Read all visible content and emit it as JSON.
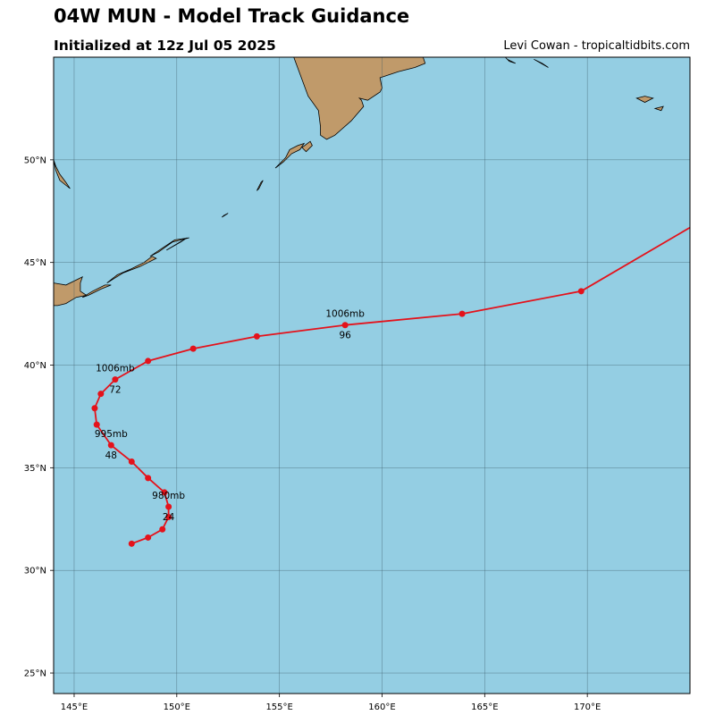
{
  "header": {
    "title": "04W MUN - Model Track Guidance",
    "subtitle": "Initialized at 12z Jul 05 2025",
    "credit": "Levi Cowan - tropicaltidbits.com"
  },
  "colors": {
    "ocean": "#94cee3",
    "land": "#c09a6a",
    "track": "#e4121b",
    "grid": "#3a5a66"
  },
  "chart_data": {
    "type": "map-track",
    "x_axis": {
      "range": [
        144,
        175
      ],
      "ticks": [
        145,
        150,
        155,
        160,
        165,
        170
      ],
      "tick_labels": [
        "145°E",
        "150°E",
        "155°E",
        "160°E",
        "165°E",
        "170°E"
      ]
    },
    "y_axis": {
      "range": [
        24,
        55
      ],
      "ticks": [
        25,
        30,
        35,
        40,
        45,
        50
      ],
      "tick_labels": [
        "25°N",
        "30°N",
        "35°N",
        "40°N",
        "45°N",
        "50°N"
      ]
    },
    "track": [
      {
        "lon": 147.8,
        "lat": 31.3
      },
      {
        "lon": 148.6,
        "lat": 31.6
      },
      {
        "lon": 149.3,
        "lat": 32.0
      },
      {
        "lon": 149.6,
        "lat": 32.6
      },
      {
        "lon": 149.6,
        "lat": 33.1
      },
      {
        "lon": 149.4,
        "lat": 33.8
      },
      {
        "lon": 148.6,
        "lat": 34.5
      },
      {
        "lon": 147.8,
        "lat": 35.3
      },
      {
        "lon": 146.8,
        "lat": 36.1
      },
      {
        "lon": 146.1,
        "lat": 37.1
      },
      {
        "lon": 146.0,
        "lat": 37.9
      },
      {
        "lon": 146.3,
        "lat": 38.6
      },
      {
        "lon": 147.0,
        "lat": 39.3
      },
      {
        "lon": 148.6,
        "lat": 40.2
      },
      {
        "lon": 150.8,
        "lat": 40.8
      },
      {
        "lon": 153.9,
        "lat": 41.4
      },
      {
        "lon": 158.2,
        "lat": 41.95
      },
      {
        "lon": 163.9,
        "lat": 42.5
      },
      {
        "lon": 169.7,
        "lat": 43.6
      },
      {
        "lon": 175.0,
        "lat": 46.7
      }
    ],
    "track_end_index": 18,
    "labels": [
      {
        "pressure": "980mb",
        "hour": "24",
        "lon": 149.6,
        "lat": 33.1
      },
      {
        "pressure": "995mb",
        "hour": "48",
        "lon": 146.8,
        "lat": 36.1
      },
      {
        "pressure": "1006mb",
        "hour": "72",
        "lon": 147.0,
        "lat": 39.3
      },
      {
        "pressure": "1006mb",
        "hour": "96",
        "lon": 158.2,
        "lat": 41.95
      }
    ],
    "land": [
      {
        "name": "kamchatka",
        "points": [
          [
            155.7,
            55
          ],
          [
            156.4,
            53.1
          ],
          [
            156.9,
            52.4
          ],
          [
            157.0,
            51.6
          ],
          [
            157.0,
            51.2
          ],
          [
            157.3,
            51.0
          ],
          [
            157.7,
            51.2
          ],
          [
            158.5,
            51.9
          ],
          [
            159.1,
            52.6
          ],
          [
            159.0,
            52.9
          ],
          [
            158.9,
            53.0
          ],
          [
            159.3,
            52.9
          ],
          [
            159.9,
            53.3
          ],
          [
            160.0,
            53.5
          ],
          [
            159.9,
            54.0
          ],
          [
            160.8,
            54.3
          ],
          [
            161.6,
            54.5
          ],
          [
            162.1,
            54.7
          ],
          [
            162.0,
            55.0
          ]
        ]
      },
      {
        "name": "kuril-paramushir",
        "points": [
          [
            156.1,
            50.6
          ],
          [
            156.5,
            50.9
          ],
          [
            156.6,
            50.7
          ],
          [
            156.3,
            50.4
          ]
        ]
      },
      {
        "name": "kuril-onekotan",
        "points": [
          [
            154.8,
            49.6
          ],
          [
            155.3,
            50.1
          ],
          [
            155.5,
            50.5
          ],
          [
            155.9,
            50.7
          ],
          [
            156.2,
            50.8
          ],
          [
            156.0,
            50.5
          ],
          [
            155.6,
            50.3
          ],
          [
            155.2,
            49.9
          ]
        ]
      },
      {
        "name": "kuril-shiashkotan",
        "points": [
          [
            153.9,
            48.5
          ],
          [
            154.1,
            48.9
          ],
          [
            154.2,
            49.0
          ],
          [
            154.0,
            48.6
          ]
        ]
      },
      {
        "name": "kuril-simushir",
        "points": [
          [
            152.2,
            47.2
          ],
          [
            152.5,
            47.4
          ],
          [
            152.3,
            47.3
          ]
        ]
      },
      {
        "name": "kuril-urup",
        "points": [
          [
            149.5,
            45.6
          ],
          [
            150.5,
            46.2
          ],
          [
            150.2,
            46.0
          ]
        ]
      },
      {
        "name": "kuril-iturup",
        "points": [
          [
            148.7,
            45.3
          ],
          [
            149.3,
            45.7
          ],
          [
            149.9,
            46.1
          ],
          [
            150.6,
            46.2
          ],
          [
            149.8,
            46.0
          ],
          [
            149.1,
            45.5
          ]
        ]
      },
      {
        "name": "kuril-kunashir",
        "points": [
          [
            146.6,
            44.0
          ],
          [
            147.1,
            44.4
          ],
          [
            147.8,
            44.7
          ],
          [
            148.4,
            45.0
          ],
          [
            148.8,
            45.3
          ],
          [
            149.0,
            45.2
          ],
          [
            148.2,
            44.8
          ],
          [
            147.4,
            44.5
          ]
        ]
      },
      {
        "name": "kuril-shikotan",
        "points": [
          [
            145.4,
            43.3
          ],
          [
            145.9,
            43.6
          ],
          [
            146.5,
            43.9
          ],
          [
            146.8,
            43.9
          ],
          [
            146.3,
            43.7
          ],
          [
            145.7,
            43.4
          ]
        ]
      },
      {
        "name": "hokkaido",
        "points": [
          [
            144,
            44.0
          ],
          [
            144.6,
            43.9
          ],
          [
            145.2,
            44.2
          ],
          [
            145.4,
            44.3
          ],
          [
            145.3,
            44.0
          ],
          [
            145.3,
            43.6
          ],
          [
            145.6,
            43.4
          ],
          [
            145.1,
            43.3
          ],
          [
            144.6,
            43.0
          ],
          [
            144.2,
            42.9
          ],
          [
            144,
            42.9
          ]
        ]
      },
      {
        "name": "sakhalin-tip",
        "points": [
          [
            144,
            50.0
          ],
          [
            144.1,
            49.5
          ],
          [
            144.3,
            49.0
          ],
          [
            144.8,
            48.6
          ],
          [
            144.6,
            48.9
          ],
          [
            144.3,
            49.3
          ],
          [
            144.1,
            49.7
          ]
        ]
      },
      {
        "name": "commander-bering",
        "points": [
          [
            166.0,
            55.0
          ],
          [
            166.2,
            54.8
          ],
          [
            166.5,
            54.7
          ],
          [
            166.1,
            54.9
          ]
        ]
      },
      {
        "name": "commander-medny",
        "points": [
          [
            167.4,
            54.9
          ],
          [
            168.1,
            54.5
          ],
          [
            167.8,
            54.7
          ]
        ]
      },
      {
        "name": "aleutian-attu",
        "points": [
          [
            172.4,
            53.0
          ],
          [
            172.8,
            53.1
          ],
          [
            173.2,
            53.0
          ],
          [
            172.8,
            52.8
          ]
        ]
      },
      {
        "name": "aleutian-agattu",
        "points": [
          [
            173.3,
            52.5
          ],
          [
            173.7,
            52.6
          ],
          [
            173.6,
            52.4
          ]
        ]
      }
    ]
  }
}
